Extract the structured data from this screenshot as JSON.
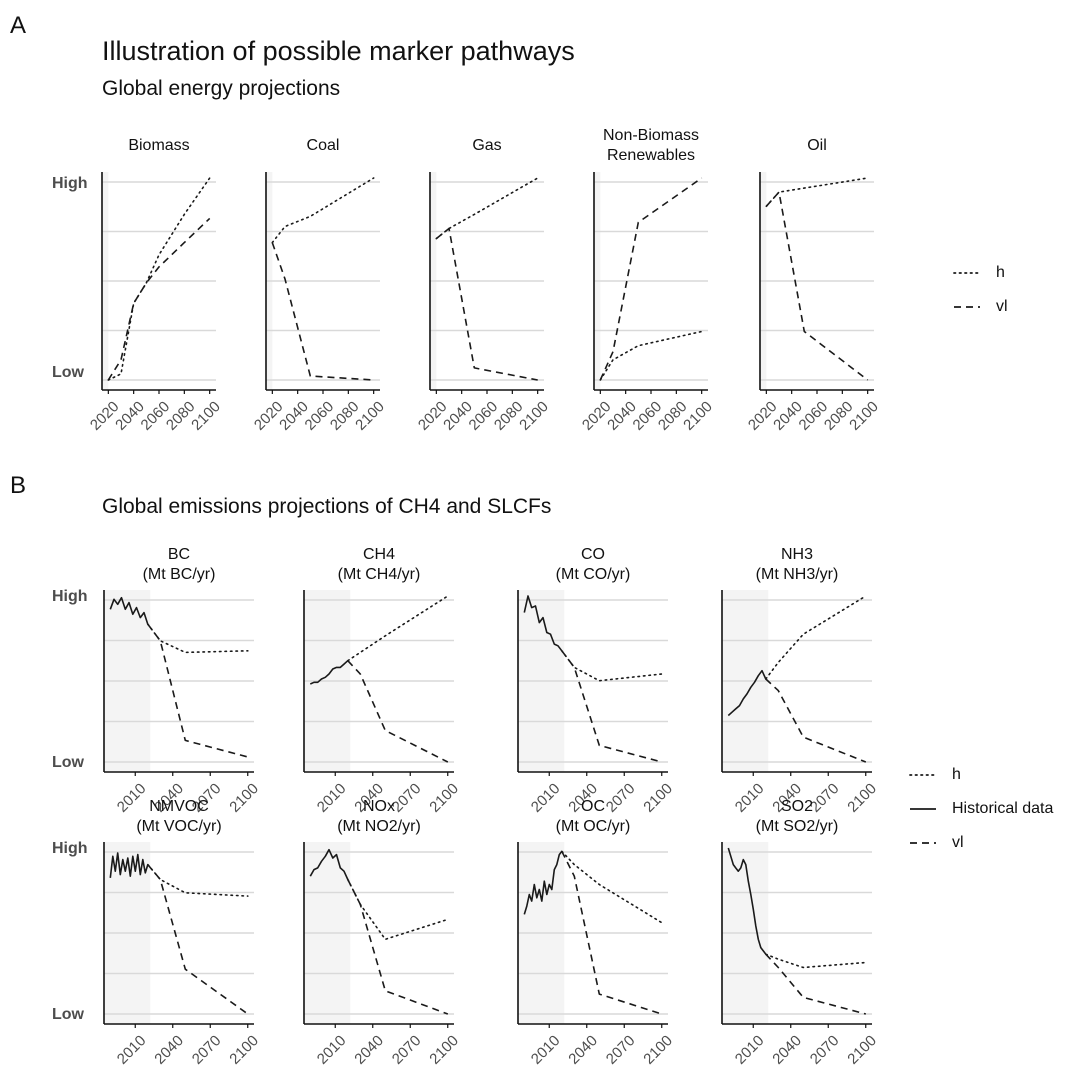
{
  "panelA": {
    "letter": "A",
    "title": "Illustration of possible marker pathways",
    "subtitle": "Global energy projections"
  },
  "panelB": {
    "letter": "B",
    "subtitle": "Global emissions projections of CH4 and SLCFs"
  },
  "axis_labels": {
    "high": "High",
    "low": "Low"
  },
  "legendA": {
    "items": [
      {
        "label": "h",
        "dash": "dotted"
      },
      {
        "label": "vl",
        "dash": "dashed"
      }
    ]
  },
  "legendB": {
    "items": [
      {
        "label": "h",
        "dash": "dotted"
      },
      {
        "label": "Historical data",
        "dash": "solid"
      },
      {
        "label": "vl",
        "dash": "dashed"
      }
    ]
  },
  "colors": {
    "line": "#1a1a1a",
    "grid": "#d9d9d9",
    "shade": "#f4f4f4",
    "axis": "#111111",
    "tick_text": "#4d4d4d"
  },
  "chart_data": [
    {
      "type": "line",
      "group": "A",
      "title": "Biomass",
      "x_ticks": [
        "2020",
        "2040",
        "2060",
        "2080",
        "2100"
      ],
      "xlim": [
        2015,
        2105
      ],
      "ylim": [
        0,
        1
      ],
      "shade": [
        2015,
        2020
      ],
      "series": [
        {
          "name": "h",
          "style": "dotted",
          "x": [
            2020,
            2030,
            2040,
            2050,
            2060,
            2080,
            2100
          ],
          "y": [
            0.0,
            0.03,
            0.38,
            0.48,
            0.62,
            0.82,
            1.0
          ]
        },
        {
          "name": "vl",
          "style": "dashed",
          "x": [
            2020,
            2030,
            2040,
            2050,
            2060,
            2080,
            2100
          ],
          "y": [
            0.0,
            0.1,
            0.38,
            0.48,
            0.56,
            0.68,
            0.8
          ]
        }
      ]
    },
    {
      "type": "line",
      "group": "A",
      "title": "Coal",
      "x_ticks": [
        "2020",
        "2040",
        "2060",
        "2080",
        "2100"
      ],
      "xlim": [
        2015,
        2105
      ],
      "ylim": [
        0,
        1
      ],
      "shade": [
        2015,
        2020
      ],
      "series": [
        {
          "name": "h",
          "style": "dotted",
          "x": [
            2020,
            2030,
            2050,
            2100
          ],
          "y": [
            0.68,
            0.76,
            0.81,
            1.0
          ]
        },
        {
          "name": "vl",
          "style": "dashed",
          "x": [
            2020,
            2030,
            2050,
            2100
          ],
          "y": [
            0.68,
            0.5,
            0.02,
            0.0
          ]
        }
      ]
    },
    {
      "type": "line",
      "group": "A",
      "title": "Gas",
      "x_ticks": [
        "2020",
        "2040",
        "2060",
        "2080",
        "2100"
      ],
      "xlim": [
        2015,
        2105
      ],
      "ylim": [
        0,
        1
      ],
      "shade": [
        2015,
        2020
      ],
      "series": [
        {
          "name": "h",
          "style": "dotted",
          "x": [
            2020,
            2030,
            2050,
            2100
          ],
          "y": [
            0.7,
            0.75,
            0.82,
            1.0
          ]
        },
        {
          "name": "vl",
          "style": "dashed",
          "x": [
            2020,
            2030,
            2050,
            2100
          ],
          "y": [
            0.7,
            0.75,
            0.06,
            0.0
          ]
        }
      ]
    },
    {
      "type": "line",
      "group": "A",
      "title": "Non-Biomass\nRenewables",
      "x_ticks": [
        "2020",
        "2040",
        "2060",
        "2080",
        "2100"
      ],
      "xlim": [
        2015,
        2105
      ],
      "ylim": [
        0,
        1
      ],
      "shade": [
        2015,
        2020
      ],
      "series": [
        {
          "name": "h",
          "style": "dotted",
          "x": [
            2020,
            2030,
            2050,
            2100
          ],
          "y": [
            0.0,
            0.1,
            0.17,
            0.24
          ]
        },
        {
          "name": "vl",
          "style": "dashed",
          "x": [
            2020,
            2030,
            2050,
            2100
          ],
          "y": [
            0.0,
            0.14,
            0.78,
            1.0
          ]
        }
      ]
    },
    {
      "type": "line",
      "group": "A",
      "title": "Oil",
      "x_ticks": [
        "2020",
        "2040",
        "2060",
        "2080",
        "2100"
      ],
      "xlim": [
        2015,
        2105
      ],
      "ylim": [
        0,
        1
      ],
      "shade": [
        2015,
        2020
      ],
      "series": [
        {
          "name": "h",
          "style": "dotted",
          "x": [
            2020,
            2030,
            2050,
            2100
          ],
          "y": [
            0.86,
            0.93,
            0.95,
            1.0
          ]
        },
        {
          "name": "vl",
          "style": "dashed",
          "x": [
            2020,
            2030,
            2050,
            2100
          ],
          "y": [
            0.86,
            0.93,
            0.24,
            0.0
          ]
        }
      ]
    },
    {
      "type": "line",
      "group": "B",
      "title": "BC\n(Mt BC/yr)",
      "x_ticks": [
        "2010",
        "2040",
        "2070",
        "2100"
      ],
      "xlim": [
        1985,
        2105
      ],
      "ylim": [
        0,
        1
      ],
      "shade": [
        1985,
        2022
      ],
      "series": [
        {
          "name": "Historical data",
          "style": "solid",
          "x": [
            1990,
            1993,
            1996,
            1999,
            2002,
            2005,
            2008,
            2011,
            2014,
            2017,
            2020
          ],
          "y": [
            0.92,
            0.98,
            0.95,
            0.99,
            0.92,
            0.96,
            0.89,
            0.93,
            0.87,
            0.9,
            0.83
          ]
        },
        {
          "name": "h",
          "style": "dotted",
          "x": [
            2020,
            2030,
            2050,
            2100
          ],
          "y": [
            0.83,
            0.73,
            0.66,
            0.67
          ]
        },
        {
          "name": "vl",
          "style": "dashed",
          "x": [
            2020,
            2030,
            2050,
            2100
          ],
          "y": [
            0.83,
            0.73,
            0.13,
            0.03
          ]
        }
      ]
    },
    {
      "type": "line",
      "group": "B",
      "title": "CH4\n(Mt CH4/yr)",
      "x_ticks": [
        "2010",
        "2040",
        "2070",
        "2100"
      ],
      "xlim": [
        1985,
        2105
      ],
      "ylim": [
        0,
        1
      ],
      "shade": [
        1985,
        2022
      ],
      "series": [
        {
          "name": "Historical data",
          "style": "solid",
          "x": [
            1990,
            1993,
            1996,
            1999,
            2002,
            2005,
            2008,
            2011,
            2014,
            2017,
            2020
          ],
          "y": [
            0.47,
            0.48,
            0.48,
            0.5,
            0.51,
            0.53,
            0.56,
            0.57,
            0.57,
            0.59,
            0.61
          ]
        },
        {
          "name": "h",
          "style": "dotted",
          "x": [
            2020,
            2030,
            2050,
            2100
          ],
          "y": [
            0.61,
            0.66,
            0.76,
            1.0
          ]
        },
        {
          "name": "vl",
          "style": "dashed",
          "x": [
            2020,
            2030,
            2050,
            2100
          ],
          "y": [
            0.61,
            0.53,
            0.19,
            0.0
          ]
        }
      ]
    },
    {
      "type": "line",
      "group": "B",
      "title": "CO\n(Mt CO/yr)",
      "x_ticks": [
        "2010",
        "2040",
        "2070",
        "2100"
      ],
      "xlim": [
        1985,
        2105
      ],
      "ylim": [
        0,
        1
      ],
      "shade": [
        1985,
        2022
      ],
      "series": [
        {
          "name": "Historical data",
          "style": "solid",
          "x": [
            1990,
            1993,
            1996,
            1999,
            2002,
            2005,
            2008,
            2011,
            2014,
            2017,
            2020
          ],
          "y": [
            0.9,
            1.0,
            0.93,
            0.94,
            0.84,
            0.87,
            0.78,
            0.77,
            0.71,
            0.7,
            0.67
          ]
        },
        {
          "name": "h",
          "style": "dotted",
          "x": [
            2020,
            2030,
            2050,
            2100
          ],
          "y": [
            0.67,
            0.57,
            0.49,
            0.53
          ]
        },
        {
          "name": "vl",
          "style": "dashed",
          "x": [
            2020,
            2030,
            2050,
            2100
          ],
          "y": [
            0.67,
            0.57,
            0.1,
            0.0
          ]
        }
      ]
    },
    {
      "type": "line",
      "group": "B",
      "title": "NH3\n(Mt NH3/yr)",
      "x_ticks": [
        "2010",
        "2040",
        "2070",
        "2100"
      ],
      "xlim": [
        1985,
        2105
      ],
      "ylim": [
        0,
        1
      ],
      "shade": [
        1985,
        2022
      ],
      "series": [
        {
          "name": "Historical data",
          "style": "solid",
          "x": [
            1990,
            1993,
            1996,
            1999,
            2002,
            2005,
            2008,
            2011,
            2014,
            2017,
            2020
          ],
          "y": [
            0.28,
            0.3,
            0.32,
            0.34,
            0.38,
            0.41,
            0.45,
            0.48,
            0.52,
            0.55,
            0.5
          ]
        },
        {
          "name": "h",
          "style": "dotted",
          "x": [
            2020,
            2030,
            2050,
            2100
          ],
          "y": [
            0.5,
            0.6,
            0.77,
            1.0
          ]
        },
        {
          "name": "vl",
          "style": "dashed",
          "x": [
            2020,
            2030,
            2050,
            2100
          ],
          "y": [
            0.5,
            0.43,
            0.15,
            0.0
          ]
        }
      ]
    },
    {
      "type": "line",
      "group": "B",
      "title": "NMVOC\n(Mt VOC/yr)",
      "x_ticks": [
        "2010",
        "2040",
        "2070",
        "2100"
      ],
      "xlim": [
        1985,
        2105
      ],
      "ylim": [
        0,
        1
      ],
      "shade": [
        1985,
        2022
      ],
      "series": [
        {
          "name": "Historical data",
          "style": "solid",
          "x": [
            1990,
            1992,
            1994,
            1996,
            1998,
            2000,
            2002,
            2004,
            2006,
            2008,
            2010,
            2012,
            2014,
            2016,
            2018,
            2020
          ],
          "y": [
            0.82,
            0.95,
            0.86,
            0.97,
            0.84,
            0.93,
            0.86,
            0.94,
            0.83,
            0.95,
            0.86,
            0.96,
            0.84,
            0.93,
            0.85,
            0.9
          ]
        },
        {
          "name": "h",
          "style": "dotted",
          "x": [
            2020,
            2030,
            2050,
            2100
          ],
          "y": [
            0.9,
            0.81,
            0.73,
            0.71
          ]
        },
        {
          "name": "vl",
          "style": "dashed",
          "x": [
            2020,
            2030,
            2050,
            2100
          ],
          "y": [
            0.9,
            0.81,
            0.27,
            0.0
          ]
        }
      ]
    },
    {
      "type": "line",
      "group": "B",
      "title": "NOx\n(Mt NO2/yr)",
      "x_ticks": [
        "2010",
        "2040",
        "2070",
        "2100"
      ],
      "xlim": [
        1985,
        2105
      ],
      "ylim": [
        0,
        1
      ],
      "shade": [
        1985,
        2022
      ],
      "series": [
        {
          "name": "Historical data",
          "style": "solid",
          "x": [
            1990,
            1993,
            1996,
            1999,
            2002,
            2005,
            2008,
            2011,
            2014,
            2017,
            2020
          ],
          "y": [
            0.83,
            0.87,
            0.88,
            0.92,
            0.95,
            0.99,
            0.94,
            0.96,
            0.88,
            0.86,
            0.81
          ]
        },
        {
          "name": "h",
          "style": "dotted",
          "x": [
            2020,
            2030,
            2050,
            2100
          ],
          "y": [
            0.81,
            0.66,
            0.45,
            0.57
          ]
        },
        {
          "name": "vl",
          "style": "dashed",
          "x": [
            2020,
            2030,
            2050,
            2100
          ],
          "y": [
            0.81,
            0.66,
            0.14,
            0.0
          ]
        }
      ]
    },
    {
      "type": "line",
      "group": "B",
      "title": "OC\n(Mt OC/yr)",
      "x_ticks": [
        "2010",
        "2040",
        "2070",
        "2100"
      ],
      "xlim": [
        1985,
        2105
      ],
      "ylim": [
        0,
        1
      ],
      "shade": [
        1985,
        2022
      ],
      "series": [
        {
          "name": "Historical data",
          "style": "solid",
          "x": [
            1990,
            1992,
            1994,
            1996,
            1998,
            2000,
            2002,
            2004,
            2006,
            2008,
            2010,
            2012,
            2014,
            2016,
            2018,
            2020
          ],
          "y": [
            0.6,
            0.65,
            0.72,
            0.68,
            0.78,
            0.7,
            0.75,
            0.68,
            0.8,
            0.72,
            0.78,
            0.75,
            0.87,
            0.9,
            0.96,
            0.98
          ]
        },
        {
          "name": "h",
          "style": "dotted",
          "x": [
            2020,
            2030,
            2050,
            2100
          ],
          "y": [
            0.98,
            0.9,
            0.78,
            0.55
          ]
        },
        {
          "name": "vl",
          "style": "dashed",
          "x": [
            2020,
            2030,
            2050,
            2100
          ],
          "y": [
            0.98,
            0.83,
            0.12,
            0.0
          ]
        }
      ]
    },
    {
      "type": "line",
      "group": "B",
      "title": "SO2\n(Mt SO2/yr)",
      "x_ticks": [
        "2010",
        "2040",
        "2070",
        "2100"
      ],
      "xlim": [
        1985,
        2105
      ],
      "ylim": [
        0,
        1
      ],
      "shade": [
        1985,
        2022
      ],
      "series": [
        {
          "name": "Historical data",
          "style": "solid",
          "x": [
            1990,
            1992,
            1994,
            1996,
            1998,
            2000,
            2002,
            2004,
            2006,
            2008,
            2010,
            2012,
            2014,
            2016,
            2018,
            2020
          ],
          "y": [
            1.0,
            0.95,
            0.9,
            0.88,
            0.86,
            0.88,
            0.93,
            0.9,
            0.8,
            0.72,
            0.63,
            0.53,
            0.45,
            0.4,
            0.38,
            0.36
          ]
        },
        {
          "name": "h",
          "style": "dotted",
          "x": [
            2020,
            2030,
            2050,
            2100
          ],
          "y": [
            0.36,
            0.33,
            0.28,
            0.31
          ]
        },
        {
          "name": "vl",
          "style": "dashed",
          "x": [
            2020,
            2030,
            2050,
            2100
          ],
          "y": [
            0.36,
            0.28,
            0.1,
            0.0
          ]
        }
      ]
    }
  ]
}
